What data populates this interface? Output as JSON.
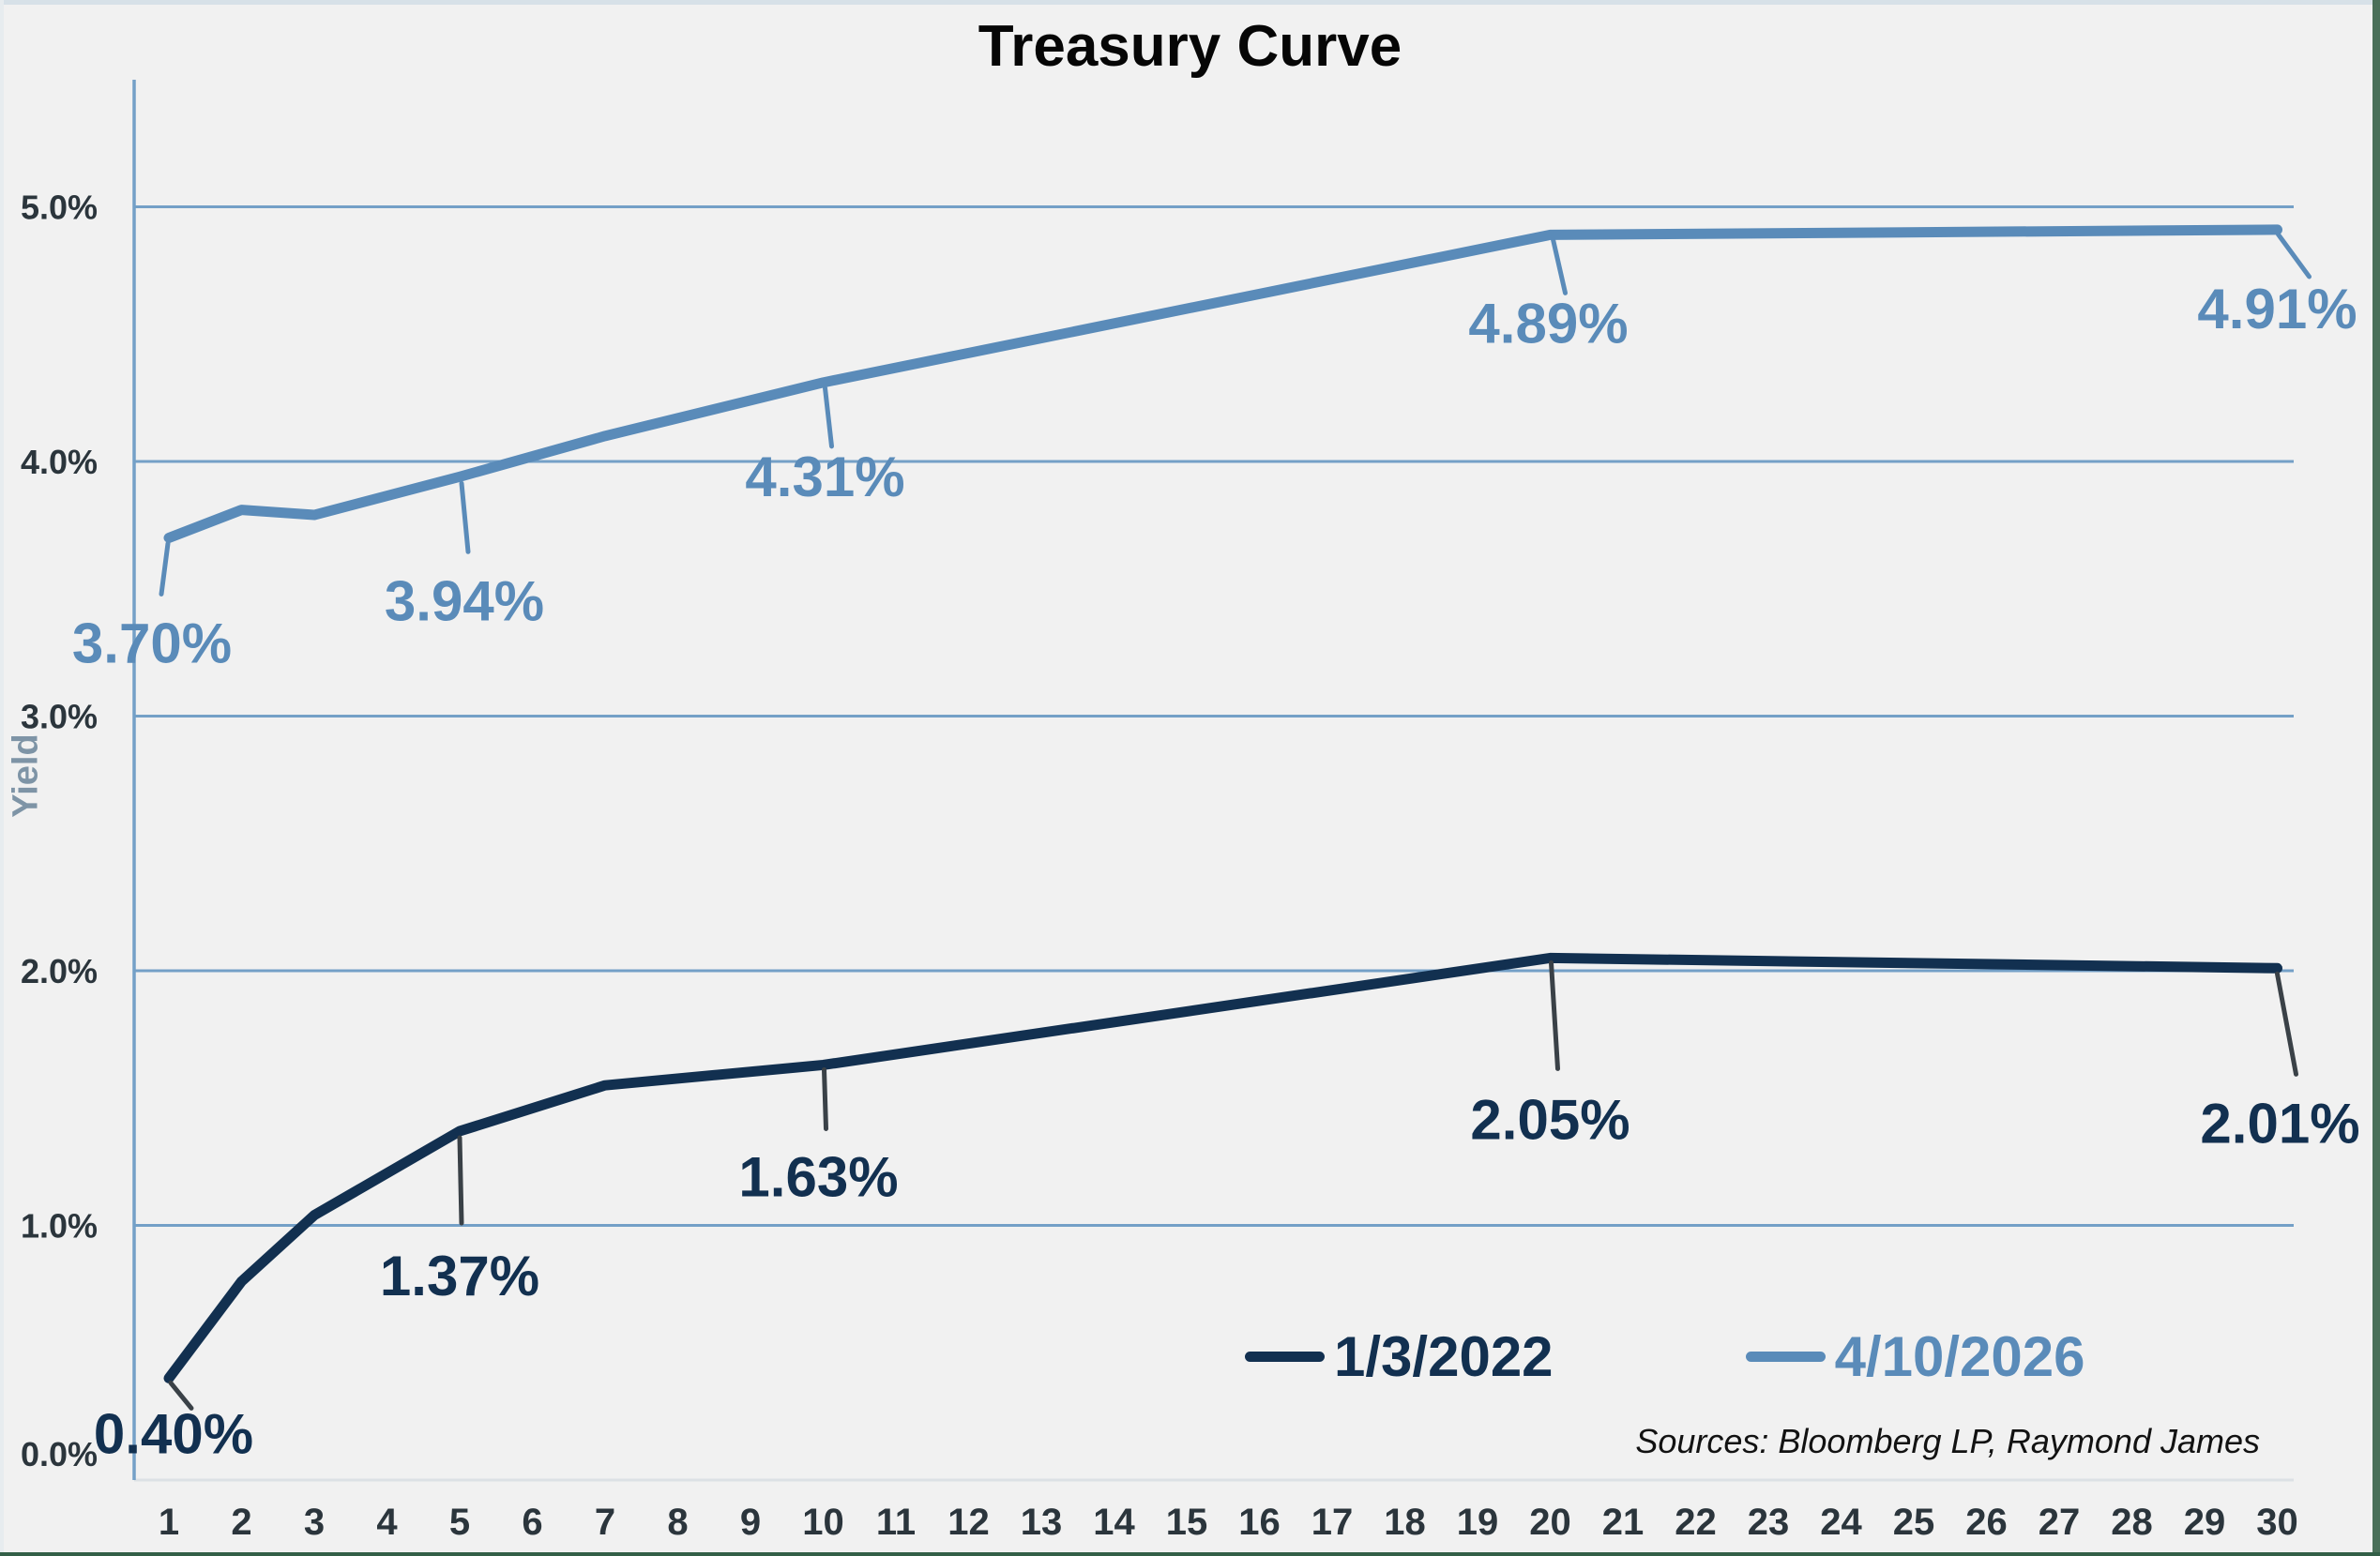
{
  "title": "Treasury Curve",
  "y_axis": {
    "label": "Yield",
    "ticks": [
      {
        "v": 5,
        "label": "5.0%"
      },
      {
        "v": 4,
        "label": "4.0%"
      },
      {
        "v": 3,
        "label": "3.0%"
      },
      {
        "v": 2,
        "label": "2.0%"
      },
      {
        "v": 1,
        "label": "1.0%"
      },
      {
        "v": 0,
        "label": "0.0%"
      }
    ]
  },
  "x_axis": {
    "ticks": [
      "1",
      "2",
      "3",
      "4",
      "5",
      "6",
      "7",
      "8",
      "9",
      "10",
      "11",
      "12",
      "13",
      "14",
      "15",
      "16",
      "17",
      "18",
      "19",
      "20",
      "21",
      "22",
      "23",
      "24",
      "25",
      "26",
      "27",
      "28",
      "29",
      "30"
    ]
  },
  "legend": {
    "items": [
      {
        "label": "1/3/2022",
        "color": "#123050"
      },
      {
        "label": "4/10/2026",
        "color": "#5A8BB9"
      }
    ]
  },
  "source_note": "Sources: Bloomberg LP, Raymond James",
  "colors": {
    "grid": "#74A0C7",
    "baseline": "#DCE1E5",
    "tick_text": "#2B353C",
    "yield_text": "#7E94A6",
    "background": "#F1F1F1"
  },
  "chart_data": {
    "type": "line",
    "title": "Treasury Curve",
    "xlabel": "",
    "ylabel": "Yield",
    "x_range": [
      1,
      30
    ],
    "y_range": [
      0,
      5.5
    ],
    "grid": true,
    "legend_position": "bottom-right",
    "categories": [
      1,
      2,
      3,
      4,
      5,
      6,
      7,
      8,
      9,
      10,
      11,
      12,
      13,
      14,
      15,
      16,
      17,
      18,
      19,
      20,
      21,
      22,
      23,
      24,
      25,
      26,
      27,
      28,
      29,
      30
    ],
    "series": [
      {
        "name": "1/3/2022",
        "color": "#123050",
        "leader_color": "#3A4147",
        "x": [
          1,
          2,
          3,
          5,
          7,
          10,
          20,
          30
        ],
        "y": [
          0.4,
          0.78,
          1.04,
          1.37,
          1.55,
          1.63,
          2.05,
          2.01
        ],
        "labels": [
          {
            "x": 1,
            "text": "0.40%",
            "dx": 5,
            "dy": 59,
            "leader": [
              2,
              5,
              24,
              32
            ]
          },
          {
            "x": 5,
            "text": "1.37%",
            "dx": 0,
            "dy": 154,
            "leader": [
              0,
              7,
              2,
              98
            ]
          },
          {
            "x": 10,
            "text": "1.63%",
            "dx": -5,
            "dy": 119,
            "leader": [
              1,
              5,
              3,
              68
            ]
          },
          {
            "x": 20,
            "text": "2.05%",
            "dx": 0,
            "dy": 172,
            "leader": [
              1,
              5,
              8,
              118
            ]
          },
          {
            "x": 30,
            "text": "2.01%",
            "dx": 3,
            "dy": 165,
            "leader": [
              0,
              6,
              20,
              113
            ]
          }
        ]
      },
      {
        "name": "4/10/2026",
        "color": "#5A8BB9",
        "leader_color": "#5A8BB9",
        "x": [
          1,
          2,
          3,
          5,
          7,
          10,
          20,
          30
        ],
        "y": [
          3.7,
          3.81,
          3.79,
          3.94,
          4.1,
          4.31,
          4.89,
          4.91
        ],
        "labels": [
          {
            "x": 1,
            "text": "3.70%",
            "dx": -18,
            "dy": 112,
            "leader": [
              -1,
              6,
              -8,
              60
            ]
          },
          {
            "x": 5,
            "text": "3.94%",
            "dx": 5,
            "dy": 132,
            "leader": [
              2,
              7,
              9,
              80
            ]
          },
          {
            "x": 10,
            "text": "4.31%",
            "dx": 2,
            "dy": 100,
            "leader": [
              2,
              6,
              9,
              68
            ]
          },
          {
            "x": 20,
            "text": "4.89%",
            "dx": -2,
            "dy": 94,
            "leader": [
              3,
              5,
              16,
              62
            ]
          },
          {
            "x": 30,
            "text": "4.91%",
            "dx": 0,
            "dy": 84,
            "leader": [
              1,
              5,
              34,
              50
            ]
          }
        ]
      }
    ]
  }
}
